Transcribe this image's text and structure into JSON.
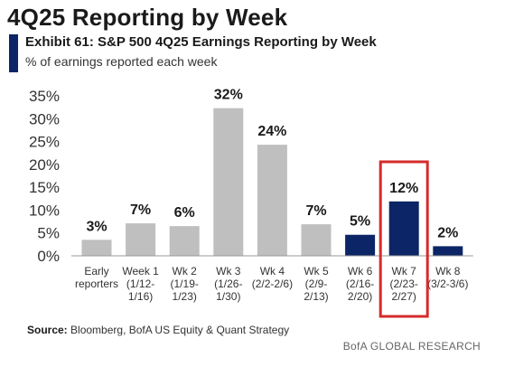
{
  "header": {
    "title": "4Q25 Reporting by Week",
    "exhibit": "Exhibit 61: S&P 500 4Q25 Earnings Reporting by Week",
    "subtitle": "% of earnings reported each week"
  },
  "chart_data": {
    "type": "bar",
    "categories": [
      [
        "Early",
        "reporters"
      ],
      [
        "Week 1",
        "(1/12-",
        "1/16)"
      ],
      [
        "Wk 2",
        "(1/19-",
        "1/23)"
      ],
      [
        "Wk 3",
        "(1/26-",
        "1/30)"
      ],
      [
        "Wk 4",
        "(2/2-2/6)"
      ],
      [
        "Wk 5",
        "(2/9-",
        "2/13)"
      ],
      [
        "Wk 6",
        "(2/16-",
        "2/20)"
      ],
      [
        "Wk 7",
        "(2/23-",
        "2/27)"
      ],
      [
        "Wk 8",
        "(3/2-3/6)"
      ]
    ],
    "values": [
      3.5,
      7.1,
      6.5,
      32.3,
      24.3,
      6.9,
      4.6,
      11.9,
      2.1
    ],
    "data_labels": [
      "3%",
      "7%",
      "6%",
      "32%",
      "24%",
      "7%",
      "5%",
      "12%",
      "2%"
    ],
    "colors": [
      "#bfbfbf",
      "#bfbfbf",
      "#bfbfbf",
      "#bfbfbf",
      "#bfbfbf",
      "#bfbfbf",
      "#0c2566",
      "#0c2566",
      "#0c2566"
    ],
    "highlight_index": 7,
    "highlight_color": "#d62b2b",
    "y_ticks": [
      "0%",
      "5%",
      "10%",
      "15%",
      "20%",
      "25%",
      "30%",
      "35%"
    ],
    "y_tick_values": [
      0,
      5,
      10,
      15,
      20,
      25,
      30,
      35
    ],
    "ylim": [
      0,
      35
    ],
    "grid": false,
    "legend": "none",
    "xlabel": "",
    "ylabel": ""
  },
  "source": {
    "label": "Source:",
    "text": "Bloomberg, BofA US Equity & Quant Strategy"
  },
  "footer": "BofA GLOBAL RESEARCH"
}
